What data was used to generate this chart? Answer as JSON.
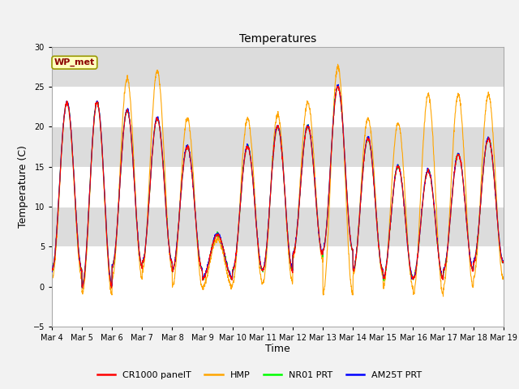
{
  "title": "Temperatures",
  "xlabel": "Time",
  "ylabel": "Temperature (C)",
  "ylim": [
    -5,
    30
  ],
  "yticks": [
    -5,
    0,
    5,
    10,
    15,
    20,
    25,
    30
  ],
  "fig_bg": "#f2f2f2",
  "plot_bg": "#ffffff",
  "band_color": "#dcdcdc",
  "band_ranges": [
    [
      5,
      10
    ],
    [
      15,
      20
    ],
    [
      25,
      30
    ]
  ],
  "legend_labels": [
    "CR1000 panelT",
    "HMP",
    "NR01 PRT",
    "AM25T PRT"
  ],
  "station_label": "WP_met",
  "station_label_color": "#8b0000",
  "station_label_bg": "#ffffc0",
  "station_label_edge": "#999900",
  "xtick_labels": [
    "Mar 4",
    "Mar 5",
    "Mar 6",
    "Mar 7",
    "Mar 8",
    "Mar 9",
    "Mar 10",
    "Mar 11",
    "Mar 12",
    "Mar 13",
    "Mar 14",
    "Mar 15",
    "Mar 16",
    "Mar 17",
    "Mar 18",
    "Mar 19"
  ],
  "n_days": 15,
  "pts_per_day": 144,
  "day_mins_cr": [
    2.0,
    0.0,
    2.5,
    3.0,
    2.0,
    1.0,
    2.0,
    2.0,
    4.0,
    4.5,
    2.0,
    1.0,
    1.0,
    2.0,
    3.0
  ],
  "day_maxs_cr": [
    23.0,
    23.0,
    22.0,
    21.0,
    17.5,
    6.5,
    17.5,
    20.0,
    20.0,
    25.0,
    18.5,
    15.0,
    14.5,
    16.5,
    18.5
  ],
  "day_mins_hmp": [
    1.0,
    -1.0,
    1.0,
    2.0,
    0.0,
    0.0,
    0.5,
    0.5,
    3.5,
    -1.0,
    1.5,
    0.0,
    -1.0,
    0.0,
    1.0
  ],
  "day_maxs_hmp": [
    23.0,
    23.0,
    26.0,
    27.0,
    21.0,
    6.0,
    21.0,
    21.5,
    23.0,
    27.5,
    21.0,
    20.5,
    24.0,
    24.0,
    24.0
  ],
  "title_fontsize": 10,
  "axis_fontsize": 9,
  "tick_fontsize": 7,
  "legend_fontsize": 8
}
